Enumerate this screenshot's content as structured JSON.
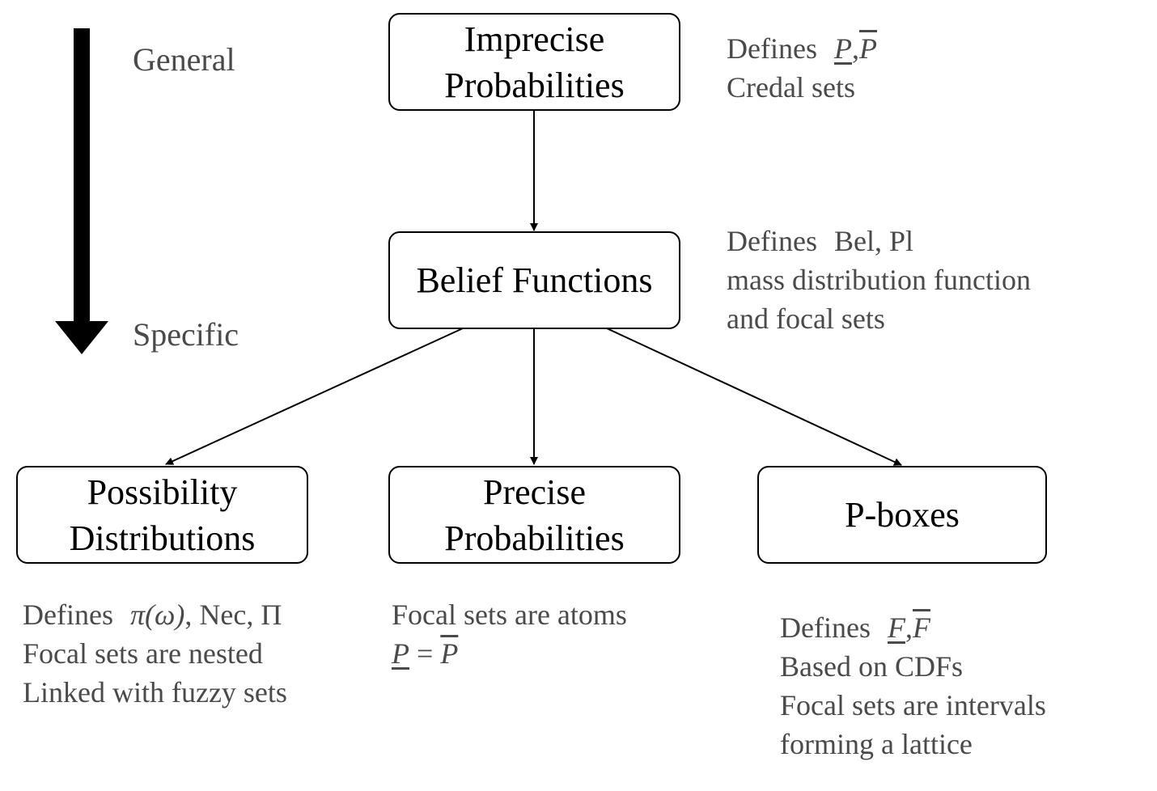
{
  "axis": {
    "top_label": "General",
    "bottom_label": "Specific"
  },
  "nodes": {
    "imprecise": {
      "line1": "Imprecise",
      "line2": "Probabilities"
    },
    "belief": {
      "label": "Belief Functions"
    },
    "possibility": {
      "line1": "Possibility",
      "line2": "Distributions"
    },
    "precise": {
      "line1": "Precise",
      "line2": "Probabilities"
    },
    "pboxes": {
      "label": "P-boxes"
    }
  },
  "notes": {
    "imprecise": {
      "defines": "Defines",
      "math_lower": "P",
      "math_sep": ",",
      "math_upper": "P",
      "line2": "Credal sets"
    },
    "belief": {
      "defines": "Defines",
      "math": "Bel, Pl",
      "line2": "mass distribution function",
      "line3": "and focal sets"
    },
    "possibility": {
      "defines": "Defines",
      "math_pi": "π",
      "math_omega": "(ω)",
      "math_rest": ", Nec, Π",
      "line2": "Focal sets are nested",
      "line3": "Linked with fuzzy sets"
    },
    "precise": {
      "line1": "Focal sets are atoms",
      "math_lower": "P",
      "math_eq": "=",
      "math_upper": "P"
    },
    "pboxes": {
      "defines": "Defines",
      "math_lower": "F",
      "math_sep": ",",
      "math_upper": "F",
      "line2": "Based on CDFs",
      "line3": "Focal sets are intervals",
      "line4": "forming a lattice"
    }
  }
}
